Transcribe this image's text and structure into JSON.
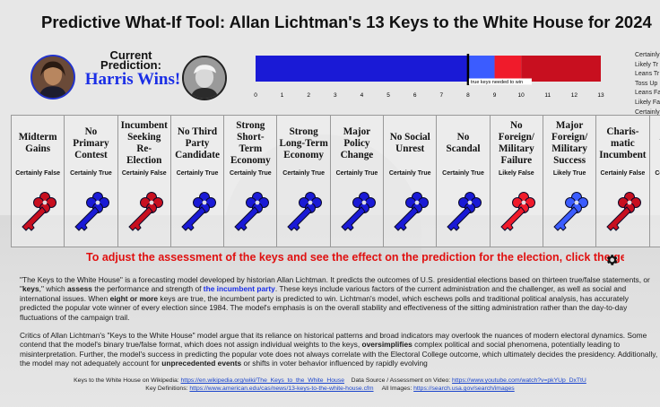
{
  "header": {
    "title": "Predictive What-If Tool: Allan Lichtman's 13 Keys to the White House for 2024",
    "current_prediction_label": "Current Prediction:",
    "winner_text": "Harris Wins!"
  },
  "colors": {
    "democrat": "#1a1ad6",
    "democrat_light": "#3b5cff",
    "republican_light": "#f01b2b",
    "republican": "#c80f1f",
    "threshold_line": "#000000"
  },
  "bar": {
    "segments": [
      {
        "label": "Certainly True",
        "count": 8,
        "color": "#1a1ad6"
      },
      {
        "label": "Likely True",
        "count": 1,
        "color": "#3b5cff"
      },
      {
        "label": "Likely False",
        "count": 1,
        "color": "#f01b2b"
      },
      {
        "label": "Certainly False",
        "count": 3,
        "color": "#c80f1f"
      }
    ],
    "threshold": 8,
    "threshold_label": "true keys needed to win",
    "axis_ticks": [
      0,
      1,
      2,
      3,
      4,
      5,
      6,
      7,
      8,
      9,
      10,
      11,
      12,
      13
    ],
    "max": 13
  },
  "legend": {
    "items": [
      "Certainly",
      "Likely Tr",
      "Leans Tr",
      "Toss Up",
      "Leans Fa",
      "Likely Fa",
      "Certainly"
    ]
  },
  "keys": [
    {
      "name": "Midterm Gains",
      "status": "Certainly False",
      "color": "#c80f1f"
    },
    {
      "name": "No Primary Contest",
      "status": "Certainly True",
      "color": "#1a1ad6"
    },
    {
      "name": "Incumbent Seeking Re-Election",
      "status": "Certainly False",
      "color": "#c80f1f"
    },
    {
      "name": "No Third Party Candidate",
      "status": "Certainly True",
      "color": "#1a1ad6"
    },
    {
      "name": "Strong Short-Term Economy",
      "status": "Certainly True",
      "color": "#1a1ad6"
    },
    {
      "name": "Strong Long-Term Economy",
      "status": "Certainly True",
      "color": "#1a1ad6"
    },
    {
      "name": "Major Policy Change",
      "status": "Certainly True",
      "color": "#1a1ad6"
    },
    {
      "name": "No Social Unrest",
      "status": "Certainly True",
      "color": "#1a1ad6"
    },
    {
      "name": "No Scandal",
      "status": "Certainly True",
      "color": "#1a1ad6"
    },
    {
      "name": "No Foreign/ Military Failure",
      "status": "Likely False",
      "color": "#f01b2b"
    },
    {
      "name": "Major Foreign/ Military Success",
      "status": "Likely True",
      "color": "#3b5cff"
    },
    {
      "name": "Charis-matic Incumbent",
      "status": "Certainly False",
      "color": "#c80f1f"
    },
    {
      "name": "Un Cha",
      "status": "Certainly True",
      "color": "#1a1ad6"
    }
  ],
  "instruction": "To adjust the assessment of the keys and see the effect on the prediction for the election, click the gear icon",
  "description": {
    "p1_parts": [
      {
        "t": "\"The Keys to the White House\" is a forecasting model developed by historian Allan Lichtman. It predicts the outcomes of U.S. presidential elections based on thirteen true/false statements, or \"",
        "s": ""
      },
      {
        "t": "keys",
        "s": "hl"
      },
      {
        "t": ",\" which ",
        "s": ""
      },
      {
        "t": "assess",
        "s": "hl"
      },
      {
        "t": " the performance and strength of ",
        "s": ""
      },
      {
        "t": "the incumbent party",
        "s": "hl-blue"
      },
      {
        "t": ". These keys include various factors of the current administration and the challenger, as well as social and international issues. When ",
        "s": ""
      },
      {
        "t": "eight or more",
        "s": "hl"
      },
      {
        "t": " keys are true, the incumbent party is predicted to win. Lichtman's model, which eschews polls and traditional political analysis, has accurately predicted the popular vote winner of every election since 1984. The model's emphasis is on the overall stability and effectiveness of the sitting administration rather than the day-to-day fluctuations of the campaign trail.",
        "s": ""
      }
    ],
    "p2_parts": [
      {
        "t": "Critics of Allan Lichtman's \"Keys to the White House\" model argue that its reliance on historical patterns and broad indicators may overlook the nuances of modern electoral dynamics. Some contend that the model's binary true/false format, which does not assign individual weights to the keys, ",
        "s": ""
      },
      {
        "t": "oversimplifies",
        "s": "hl"
      },
      {
        "t": " complex political and social phenomena, potentially leading to misinterpretation. Further, the model's success in predicting the popular vote does not always correlate with the Electoral College outcome, which ultimately decides the presidency. Additionally, the model may not adequately account for ",
        "s": ""
      },
      {
        "t": "unprecedented events",
        "s": "hl"
      },
      {
        "t": " or shifts in voter behavior influenced by rapidly evolving",
        "s": ""
      }
    ]
  },
  "footer": {
    "wiki_label": "Keys to the White House on Wikipedia: ",
    "wiki_link": "https://en.wikipedia.org/wiki/The_Keys_to_the_White_House",
    "source_label": "Data Source / Assessment on Video: ",
    "source_link": "https://www.youtube.com/watch?v=pkYUp_DxTtU",
    "defs_label": "Key Definitions: ",
    "defs_link": "https://www.american.edu/cas/news/13-keys-to-the-white-house.cfm",
    "images_label": "All Images: ",
    "images_link": "https://search.usa.gov/search/images"
  }
}
